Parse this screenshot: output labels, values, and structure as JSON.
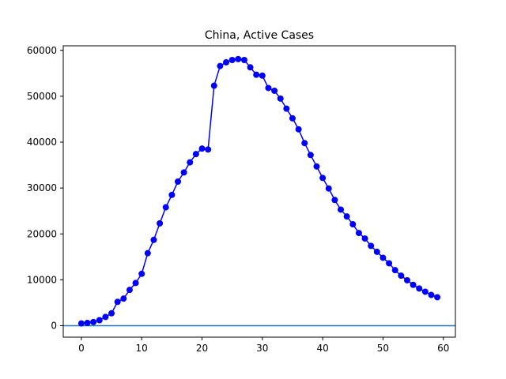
{
  "chart_data": {
    "type": "line",
    "title": "China, Active Cases",
    "xlabel": "",
    "ylabel": "",
    "xlim": [
      -3,
      62
    ],
    "ylim": [
      -2500,
      61000
    ],
    "xticks": [
      0,
      10,
      20,
      30,
      40,
      50,
      60
    ],
    "yticks": [
      0,
      10000,
      20000,
      30000,
      40000,
      50000,
      60000
    ],
    "grid": false,
    "colors": {
      "series": "#0000ff",
      "baseline": "#1f77b4"
    },
    "baseline_y": 0,
    "series": [
      {
        "marker": "circle",
        "x": [
          0,
          1,
          2,
          3,
          4,
          5,
          6,
          7,
          8,
          9,
          10,
          11,
          12,
          13,
          14,
          15,
          16,
          17,
          18,
          19,
          20,
          21,
          22,
          23,
          24,
          25,
          26,
          27,
          28,
          29,
          30,
          31,
          32,
          33,
          34,
          35,
          36,
          37,
          38,
          39,
          40,
          41,
          42,
          43,
          44,
          45,
          46,
          47,
          48,
          49,
          50,
          51,
          52,
          53,
          54,
          55,
          56,
          57,
          58,
          59
        ],
        "y": [
          500,
          600,
          800,
          1200,
          1900,
          2700,
          5200,
          5900,
          7800,
          9300,
          11300,
          15800,
          18700,
          22300,
          25800,
          28500,
          31400,
          33400,
          35600,
          37400,
          38600,
          38400,
          52300,
          56600,
          57400,
          57900,
          58100,
          57900,
          56300,
          54700,
          54500,
          51800,
          51200,
          49500,
          47300,
          45200,
          42800,
          39800,
          37200,
          34700,
          32200,
          29900,
          27400,
          25300,
          23800,
          22100,
          20200,
          19000,
          17400,
          16100,
          14800,
          13600,
          12100,
          10900,
          9900,
          8900,
          8100,
          7400,
          6700,
          6200
        ]
      }
    ]
  }
}
